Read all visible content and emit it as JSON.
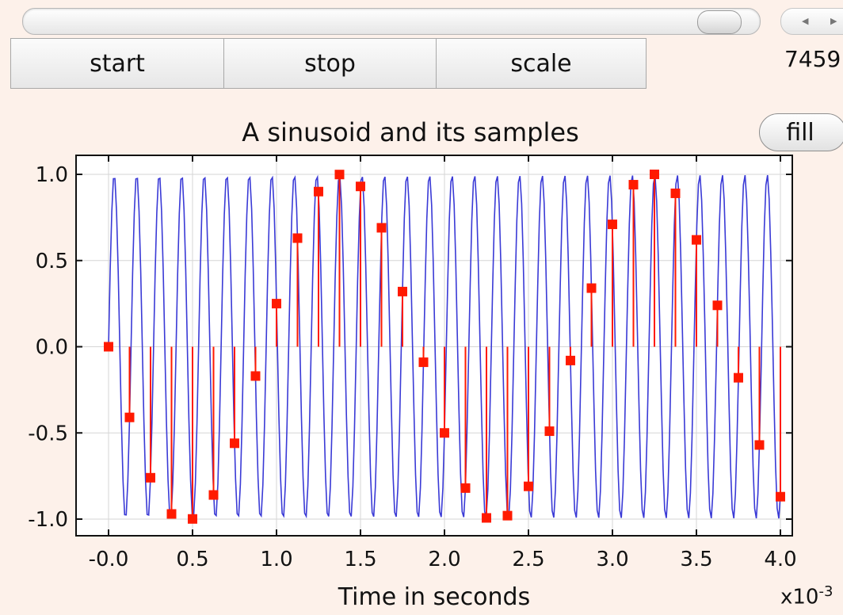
{
  "toolbar": {
    "start_label": "start",
    "stop_label": "stop",
    "scale_label": "scale",
    "counter": "7459",
    "fill_label": "fill"
  },
  "chart_data": {
    "type": "line",
    "title": "A sinusoid and its samples",
    "xlabel": "Time in seconds",
    "ylabel": "",
    "x_multiplier": "x10",
    "x_multiplier_exp": "-3",
    "xlim": [
      0,
      4.0
    ],
    "ylim": [
      -1.0,
      1.0
    ],
    "xticks": [
      "-0.0",
      "0.5",
      "1.0",
      "1.5",
      "2.0",
      "2.5",
      "3.0",
      "3.5",
      "4.0"
    ],
    "yticks": [
      "1.0",
      "0.5",
      "0.0",
      "-0.5",
      "-1.0"
    ],
    "grid": true,
    "series": [
      {
        "kind": "sinusoid",
        "color": "#3a3ad6",
        "frequency_hz": 7459,
        "amplitude": 1.0
      },
      {
        "kind": "stem-samples",
        "color": "#ff1a00",
        "x": [
          0.0,
          0.125,
          0.25,
          0.375,
          0.5,
          0.625,
          0.75,
          0.875,
          1.0,
          1.125,
          1.25,
          1.375,
          1.5,
          1.625,
          1.75,
          1.875,
          2.0,
          2.125,
          2.25,
          2.375,
          2.5,
          2.625,
          2.75,
          2.875,
          3.0,
          3.125,
          3.25,
          3.375,
          3.5,
          3.625,
          3.75,
          3.875,
          4.0
        ],
        "values": [
          0.0,
          -0.41,
          -0.76,
          -0.97,
          -0.999,
          -0.86,
          -0.56,
          -0.17,
          0.25,
          0.63,
          0.9,
          0.999,
          0.93,
          0.69,
          0.32,
          -0.09,
          -0.5,
          -0.82,
          -0.993,
          -0.98,
          -0.81,
          -0.49,
          -0.08,
          0.34,
          0.71,
          0.94,
          1.0,
          0.89,
          0.62,
          0.24,
          -0.18,
          -0.57,
          -0.87
        ]
      }
    ]
  },
  "colors": {
    "background": "#fdf1ea",
    "sinusoid": "#3a3ad6",
    "samples": "#ff1a00"
  }
}
